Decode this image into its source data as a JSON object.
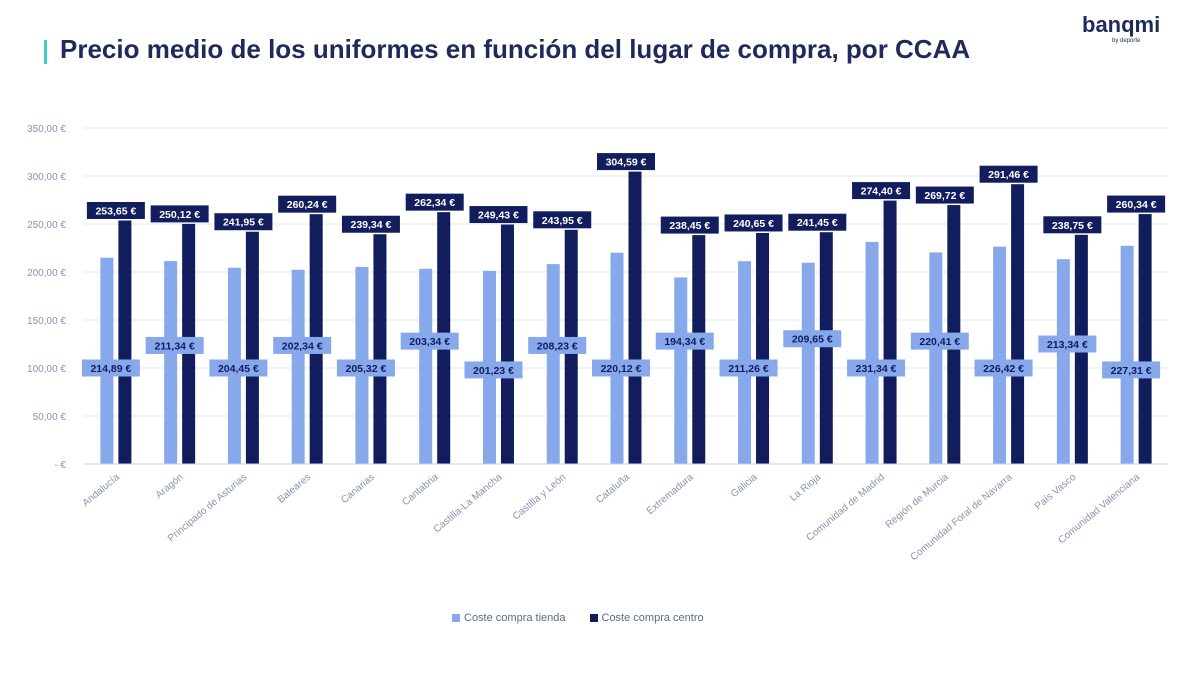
{
  "header": {
    "title": "Precio medio de los uniformes en función del lugar de compra, por CCAA",
    "logo": "banqmi",
    "logo_sub": "by deporte"
  },
  "colors": {
    "tienda": "#87a9ec",
    "centro": "#121d5e",
    "accent": "#3ecfc2",
    "grid": "#e4e7ee",
    "axis_text": "#8a94b0"
  },
  "chart_data": {
    "type": "bar",
    "categories": [
      "Andalucía",
      "Aragón",
      "Principado de Asturias",
      "Baleares",
      "Canarias",
      "Cantabria",
      "Castilla-La Mancha",
      "Castilla y León",
      "Cataluña",
      "Extremadura",
      "Galicia",
      "La Rioja",
      "Comunidad de Madrid",
      "Región de Murcia",
      "Comunidad Foral de Navarra",
      "País Vasco",
      "Comunidad Valenciana"
    ],
    "series": [
      {
        "name": "Coste compra tienda",
        "values": [
          214.89,
          211.34,
          204.45,
          202.34,
          205.32,
          203.34,
          201.23,
          208.23,
          220.12,
          194.34,
          211.26,
          209.65,
          231.34,
          220.41,
          226.42,
          213.34,
          227.31
        ],
        "labels": [
          "214,89 €",
          "211,34 €",
          "204,45 €",
          "202,34 €",
          "205,32 €",
          "203,34 €",
          "201,23 €",
          "208,23 €",
          "220,12 €",
          "194,34 €",
          "211,26 €",
          "209,65 €",
          "231,34 €",
          "220,41 €",
          "226,42 €",
          "213,34 €",
          "227,31 €"
        ]
      },
      {
        "name": "Coste compra centro",
        "values": [
          253.65,
          250.12,
          241.95,
          260.24,
          239.34,
          262.34,
          249.43,
          243.95,
          304.59,
          238.45,
          240.65,
          241.45,
          274.4,
          269.72,
          291.46,
          238.75,
          260.34
        ],
        "labels": [
          "253,65 €",
          "250,12 €",
          "241,95 €",
          "260,24 €",
          "239,34 €",
          "262,34 €",
          "249,43 €",
          "243,95 €",
          "304,59 €",
          "238,45 €",
          "240,65 €",
          "241,45 €",
          "274,40 €",
          "269,72 €",
          "291,46 €",
          "238,75 €",
          "260,34 €"
        ]
      }
    ],
    "tienda_label_positions": [
      100,
      123.5,
      100,
      123.5,
      100,
      128,
      98,
      123.5,
      100,
      128,
      100,
      130.5,
      100,
      128,
      100,
      125,
      98
    ],
    "y_ticks": [
      0,
      50,
      100,
      150,
      200,
      250,
      300,
      350
    ],
    "y_tick_labels": [
      "-   €",
      "50,00 €",
      "100,00 €",
      "150,00 €",
      "200,00 €",
      "250,00 €",
      "300,00 €",
      "350,00 €"
    ],
    "ylim": [
      0,
      350
    ],
    "grid": true,
    "legend_position": "bottom"
  }
}
